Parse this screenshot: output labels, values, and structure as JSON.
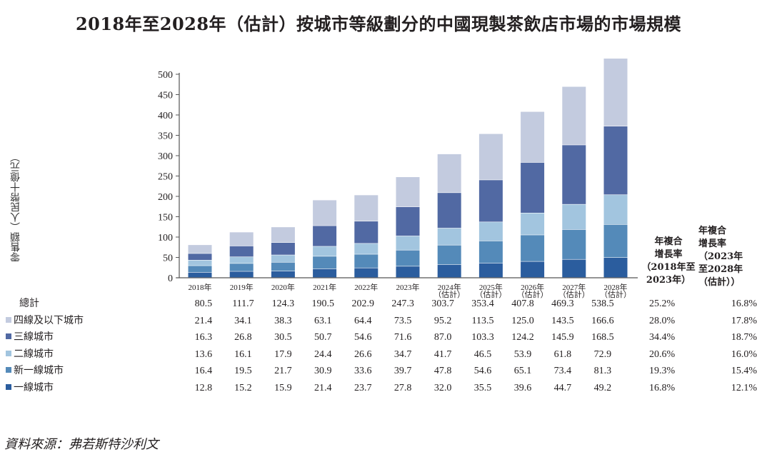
{
  "title": "2018年至2028年（估計）按城市等級劃分的中國現製茶飲店市場的市場規模",
  "source": "資料來源：弗若斯特沙利文",
  "chart_data": {
    "type": "bar",
    "stacked": true,
    "title": "2018年至2028年（估計）按城市等級劃分的中國現製茶飲店市場的市場規模",
    "ylabel": "零售額（人民幣十億元）",
    "xlabel": "",
    "ylim": [
      0,
      500
    ],
    "yticks": [
      "0",
      "50",
      "100",
      "150",
      "200",
      "250",
      "300",
      "350",
      "400",
      "450",
      "500"
    ],
    "grid": false,
    "categories": [
      [
        "2018年"
      ],
      [
        "2019年"
      ],
      [
        "2020年"
      ],
      [
        "2021年"
      ],
      [
        "2022年"
      ],
      [
        "2023年"
      ],
      [
        "2024年",
        "（估計）"
      ],
      [
        "2025年",
        "（估計）"
      ],
      [
        "2026年",
        "（估計）"
      ],
      [
        "2027年",
        "（估計）"
      ],
      [
        "2028年",
        "（估計）"
      ]
    ],
    "series": [
      {
        "name": "一線城市",
        "color": "#2b5d9e",
        "values": [
          12.8,
          15.2,
          15.9,
          21.4,
          23.7,
          27.8,
          32.0,
          35.5,
          39.6,
          44.7,
          49.2
        ],
        "cagr_2018_2023": "16.8%",
        "cagr_2023_2028": "12.1%"
      },
      {
        "name": "新一線城市",
        "color": "#548ab9",
        "values": [
          16.4,
          19.5,
          21.7,
          30.9,
          33.6,
          39.7,
          47.8,
          54.6,
          65.1,
          73.4,
          81.3
        ],
        "cagr_2018_2023": "19.3%",
        "cagr_2023_2028": "15.4%"
      },
      {
        "name": "二線城市",
        "color": "#a2c5df",
        "values": [
          13.6,
          16.1,
          17.9,
          24.4,
          26.6,
          34.7,
          41.7,
          46.5,
          53.9,
          61.8,
          72.9
        ],
        "cagr_2018_2023": "20.6%",
        "cagr_2023_2028": "16.0%"
      },
      {
        "name": "三線城市",
        "color": "#5169a3",
        "values": [
          16.3,
          26.8,
          30.5,
          50.7,
          54.6,
          71.6,
          87.0,
          103.3,
          124.2,
          145.9,
          168.5
        ],
        "cagr_2018_2023": "34.4%",
        "cagr_2023_2028": "18.7%"
      },
      {
        "name": "四線及以下城市",
        "color": "#c3cbdf",
        "values": [
          21.4,
          34.1,
          38.3,
          63.1,
          64.4,
          73.5,
          95.2,
          113.5,
          125.0,
          143.5,
          166.6
        ],
        "cagr_2018_2023": "28.0%",
        "cagr_2023_2028": "17.8%"
      }
    ],
    "total": {
      "name": "總計",
      "values": [
        80.5,
        111.7,
        124.3,
        190.5,
        202.9,
        247.3,
        303.7,
        353.4,
        407.8,
        469.3,
        538.5
      ],
      "cagr_2018_2023": "25.2%",
      "cagr_2023_2028": "16.8%"
    },
    "cagr_headers": [
      [
        "年複合",
        "增長率",
        "（2018年至",
        "2023年）"
      ],
      [
        "年複合",
        "增長率",
        "（2023年",
        "至2028年",
        "（估計））"
      ]
    ],
    "table_row_order": [
      "total",
      "四線及以下城市",
      "三線城市",
      "二線城市",
      "新一線城市",
      "一線城市"
    ]
  }
}
